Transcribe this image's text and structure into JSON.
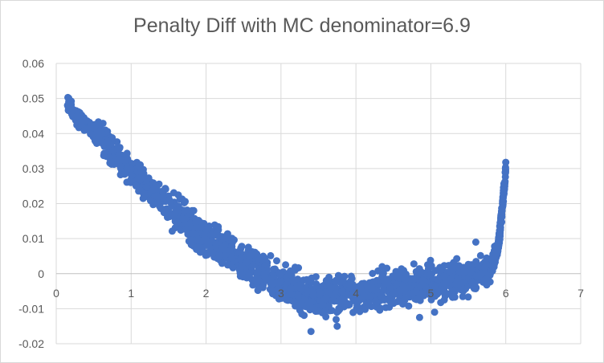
{
  "chart_data": {
    "type": "scatter",
    "title": "Penalty Diff with MC denominator=6.9",
    "xlabel": "",
    "ylabel": "",
    "xlim": [
      0,
      7
    ],
    "ylim": [
      -0.02,
      0.06
    ],
    "x_ticks": [
      "0",
      "1",
      "2",
      "3",
      "4",
      "5",
      "6",
      "7"
    ],
    "y_ticks": [
      "-0.02",
      "-0.01",
      "0",
      "0.01",
      "0.02",
      "0.03",
      "0.04",
      "0.05",
      "0.06"
    ],
    "grid": true,
    "legend": "none",
    "marker_color": "#4472C4",
    "trend_points": [
      {
        "x": 0.15,
        "y": 0.049
      },
      {
        "x": 0.3,
        "y": 0.044
      },
      {
        "x": 0.6,
        "y": 0.039
      },
      {
        "x": 1.0,
        "y": 0.029
      },
      {
        "x": 1.5,
        "y": 0.019
      },
      {
        "x": 2.0,
        "y": 0.01
      },
      {
        "x": 2.5,
        "y": 0.003
      },
      {
        "x": 3.0,
        "y": -0.003
      },
      {
        "x": 3.5,
        "y": -0.007
      },
      {
        "x": 4.0,
        "y": -0.006
      },
      {
        "x": 4.5,
        "y": -0.004
      },
      {
        "x": 5.0,
        "y": -0.002
      },
      {
        "x": 5.5,
        "y": -0.001
      },
      {
        "x": 5.8,
        "y": 0.001
      },
      {
        "x": 5.9,
        "y": 0.008
      },
      {
        "x": 5.95,
        "y": 0.018
      },
      {
        "x": 6.0,
        "y": 0.03
      }
    ],
    "outliers": [
      {
        "x": 3.4,
        "y": -0.0165
      },
      {
        "x": 3.75,
        "y": -0.015
      },
      {
        "x": 4.85,
        "y": -0.0125
      },
      {
        "x": 5.05,
        "y": -0.011
      },
      {
        "x": 4.35,
        "y": 0.002
      },
      {
        "x": 5.6,
        "y": 0.009
      }
    ]
  }
}
